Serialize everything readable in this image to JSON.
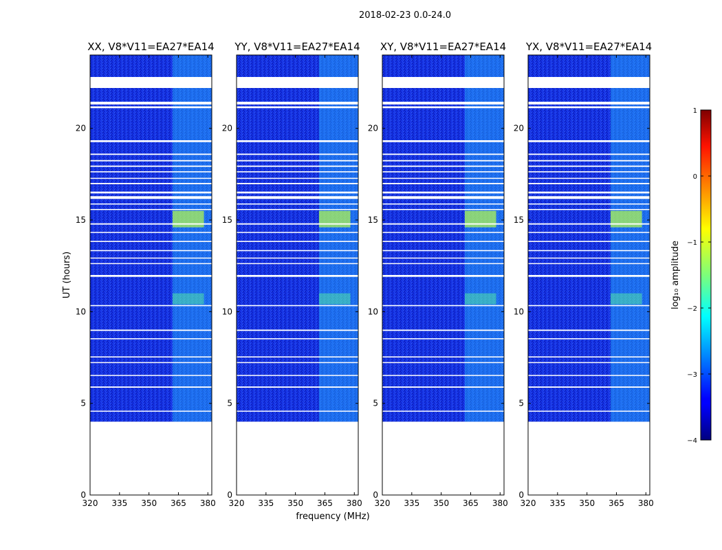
{
  "suptitle": "2018-02-23 0.0-24.0",
  "chart_data": [
    {
      "type": "heatmap",
      "title": "XX, V8*V11=EA27*EA14",
      "xlabel": "",
      "ylabel": "UT (hours)",
      "xlim": [
        320,
        382
      ],
      "ylim": [
        0,
        24
      ],
      "xticks": [
        320,
        335,
        350,
        365,
        380
      ],
      "yticks": [
        0,
        5,
        10,
        15,
        20
      ]
    },
    {
      "type": "heatmap",
      "title": "YY, V8*V11=EA27*EA14",
      "xlabel": "frequency (MHz)",
      "ylabel": "",
      "xlim": [
        320,
        382
      ],
      "ylim": [
        0,
        24
      ],
      "xticks": [
        320,
        335,
        350,
        365,
        380
      ],
      "yticks": [
        0,
        5,
        10,
        15,
        20
      ]
    },
    {
      "type": "heatmap",
      "title": "XY, V8*V11=EA27*EA14",
      "xlabel": "",
      "ylabel": "",
      "xlim": [
        320,
        382
      ],
      "ylim": [
        0,
        24
      ],
      "xticks": [
        320,
        335,
        350,
        365,
        380
      ],
      "yticks": [
        0,
        5,
        10,
        15,
        20
      ]
    },
    {
      "type": "heatmap",
      "title": "YX, V8*V11=EA27*EA14",
      "xlabel": "",
      "ylabel": "",
      "xlim": [
        320,
        382
      ],
      "ylim": [
        0,
        24
      ],
      "xticks": [
        320,
        335,
        350,
        365,
        380
      ],
      "yticks": [
        0,
        5,
        10,
        15,
        20
      ]
    }
  ],
  "data_extent": {
    "t_start": 4.0,
    "t_end": 24.0
  },
  "gaps_hours": [
    [
      22.2,
      22.8
    ],
    [
      21.3,
      21.45
    ],
    [
      21.1,
      21.2
    ],
    [
      19.25,
      19.35
    ],
    [
      18.55,
      18.62
    ],
    [
      18.2,
      18.27
    ],
    [
      17.9,
      17.97
    ],
    [
      17.6,
      17.66
    ],
    [
      17.25,
      17.3
    ],
    [
      16.95,
      17.02
    ],
    [
      16.45,
      16.55
    ],
    [
      16.15,
      16.3
    ],
    [
      15.85,
      15.9
    ],
    [
      15.55,
      15.6
    ],
    [
      14.75,
      14.82
    ],
    [
      14.3,
      14.35
    ],
    [
      13.8,
      13.86
    ],
    [
      13.3,
      13.36
    ],
    [
      12.9,
      12.95
    ],
    [
      12.6,
      12.65
    ],
    [
      11.9,
      12.0
    ],
    [
      10.3,
      10.36
    ],
    [
      8.95,
      9.02
    ],
    [
      8.5,
      8.55
    ],
    [
      7.5,
      7.56
    ],
    [
      7.2,
      7.25
    ],
    [
      6.5,
      6.55
    ],
    [
      5.85,
      5.92
    ],
    [
      4.55,
      4.6
    ]
  ],
  "bright_band_mhz": [
    362,
    382
  ],
  "colorbar": {
    "label": "log₁₀ amplitude",
    "min": -4,
    "max": 1,
    "ticks": [
      1,
      0,
      -1,
      -2,
      -3,
      -4
    ]
  }
}
